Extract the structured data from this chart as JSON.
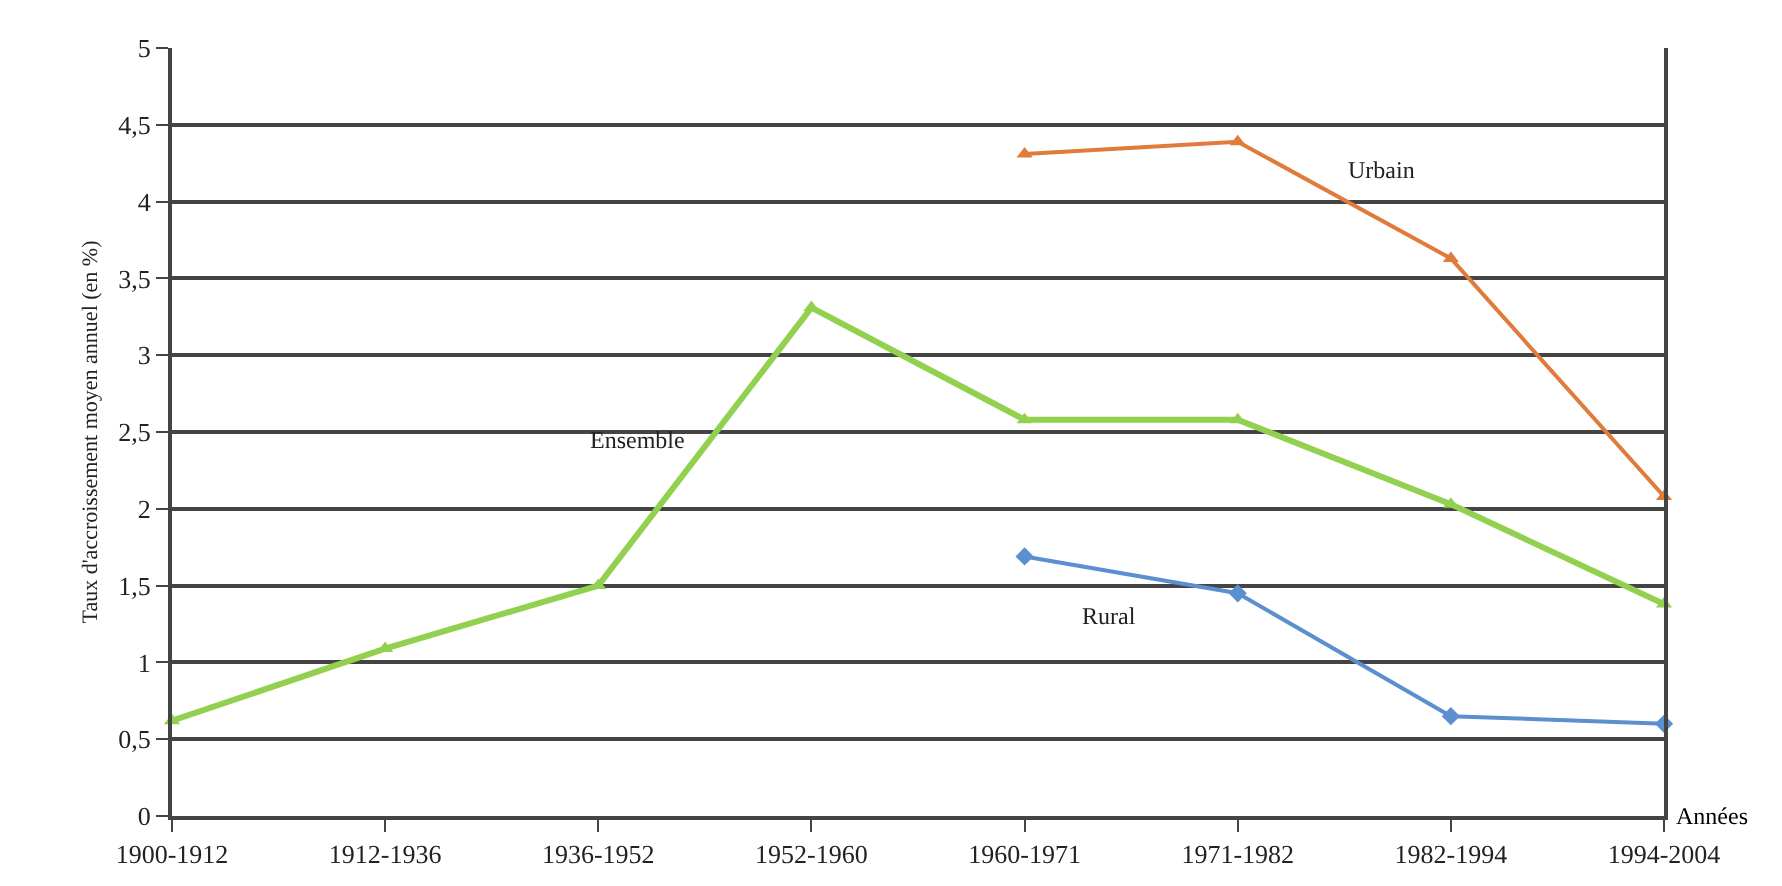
{
  "chart_data": {
    "type": "line",
    "xlabel": "Années",
    "ylabel": "Taux d'accroissement moyen annuel (en %)",
    "categories": [
      "1900-1912",
      "1912-1936",
      "1936-1952",
      "1952-1960",
      "1960-1971",
      "1971-1982",
      "1982-1994",
      "1994-2004"
    ],
    "series": [
      {
        "name": "Ensemble",
        "color": "#92d050",
        "marker": "triangle",
        "values": [
          0.62,
          1.09,
          1.5,
          3.31,
          2.58,
          2.58,
          2.03,
          1.38
        ]
      },
      {
        "name": "Urbain",
        "color": "#e07b3c",
        "marker": "triangle",
        "values": [
          null,
          null,
          null,
          null,
          4.31,
          4.39,
          3.63,
          2.08
        ]
      },
      {
        "name": "Rural",
        "color": "#5b8fd0",
        "marker": "diamond",
        "values": [
          null,
          null,
          null,
          null,
          1.69,
          1.45,
          0.65,
          0.6
        ]
      }
    ],
    "ylim": [
      0,
      5
    ],
    "yticks": [
      0,
      {
        "value": 0.5,
        "label": "0,5"
      },
      1,
      {
        "value": 1.5,
        "label": "1,5"
      },
      2,
      {
        "value": 2.5,
        "label": "2,5"
      },
      3,
      {
        "value": 3.5,
        "label": "3,5"
      },
      4,
      {
        "value": 4.5,
        "label": "4,5"
      },
      5
    ],
    "grid": "y",
    "legend": false,
    "line_style": "solid"
  }
}
